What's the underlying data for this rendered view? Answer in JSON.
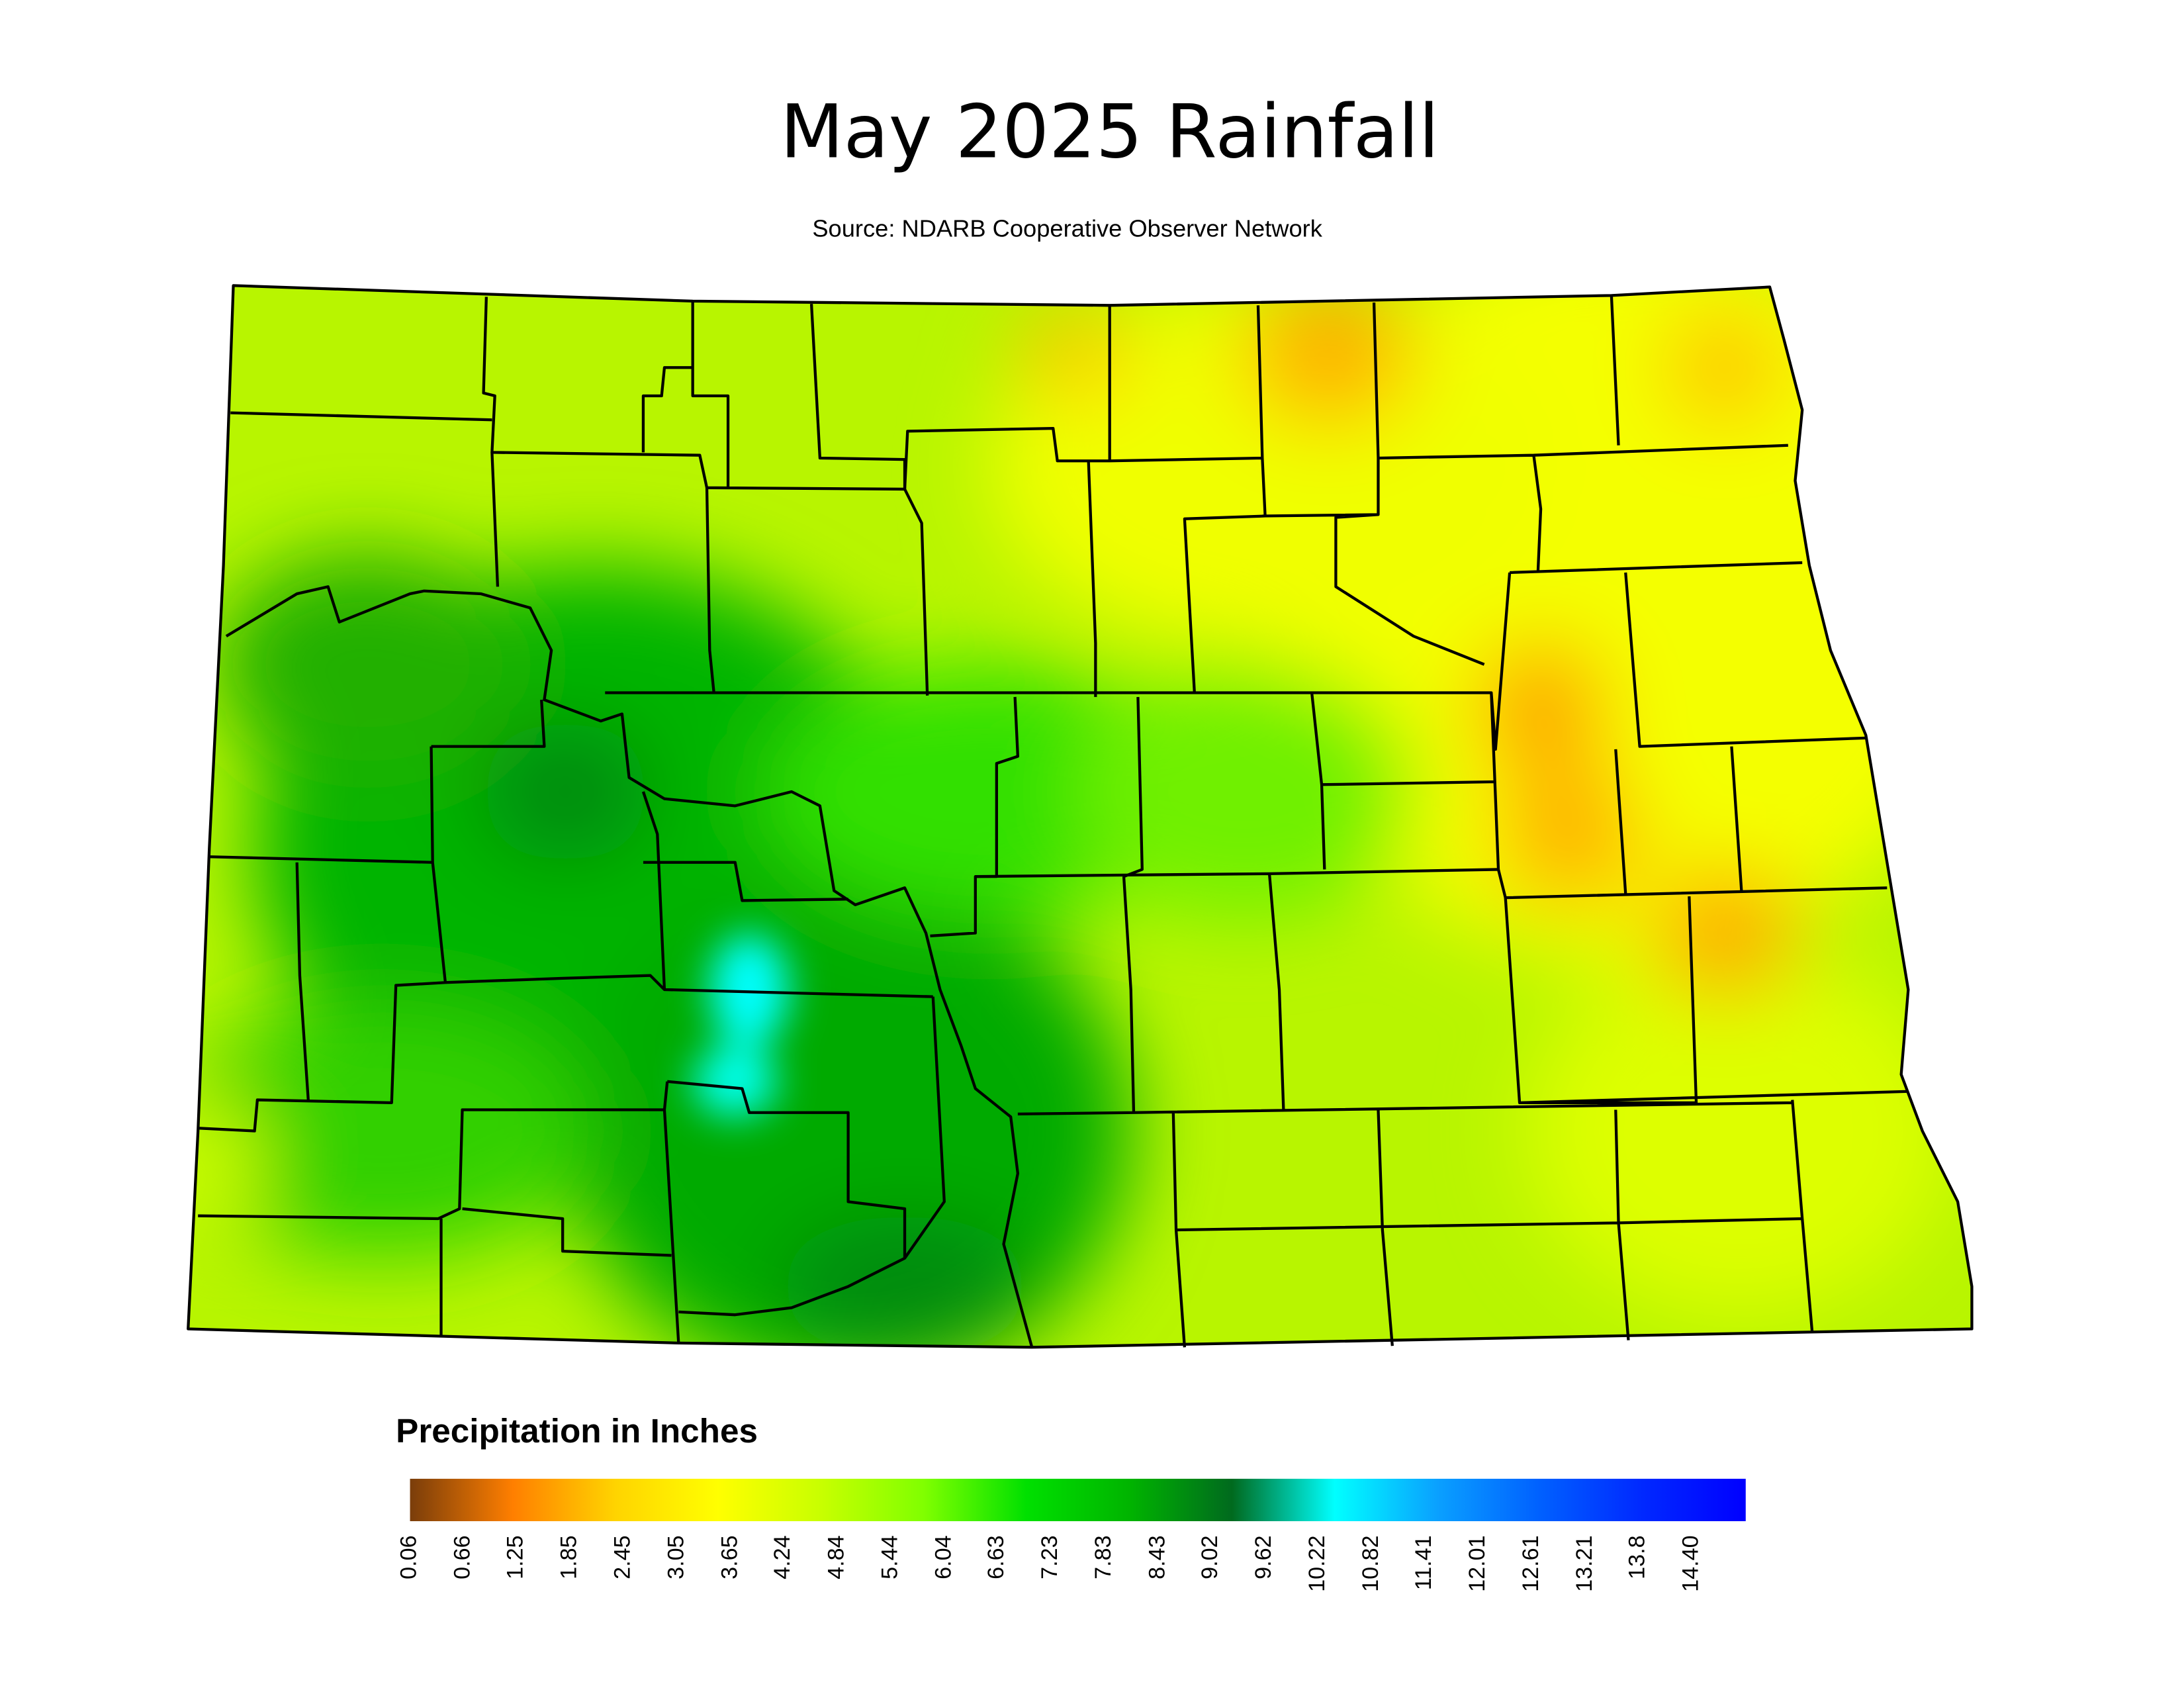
{
  "map": {
    "title": "May 2025 Rainfall",
    "source": "Source: NDARB Cooperative Observer Network",
    "colorbar": {
      "title": "Precipitation in Inches",
      "lim": [
        0.06,
        15
      ],
      "ticks": [
        0.06,
        0.66,
        1.25,
        1.85,
        2.45,
        3.05,
        3.65,
        4.24,
        4.84,
        5.44,
        6.04,
        6.63,
        7.23,
        7.83,
        8.43,
        9.02,
        9.62,
        10.22,
        10.82,
        11.41,
        12.01,
        12.61,
        13.21,
        13.8,
        {
          "value": 14.4,
          "label": "14.40"
        }
      ],
      "colors": [
        "#7a3d0a",
        "#ff7f00",
        "#ffd400",
        "#ffff00",
        "#c8ff00",
        "#80ff00",
        "#00e000",
        "#00b400",
        "#006a1e",
        "#00ffff",
        "#0aa0ff",
        "#0060ff",
        "#0028ff",
        "#0000ff"
      ]
    }
  }
}
